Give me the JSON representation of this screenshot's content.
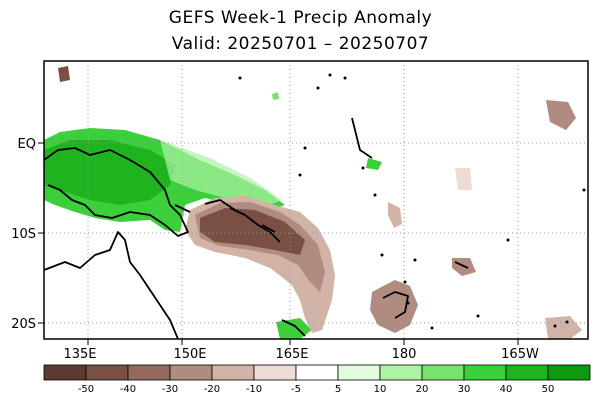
{
  "title": "GEFS Week-1 Precip Anomaly",
  "subtitle": "Valid: 20250701 – 20250707",
  "axes": {
    "x_ticks": [
      "135E",
      "150E",
      "165E",
      "180",
      "165W"
    ],
    "y_ticks": [
      "EQ",
      "10S",
      "20S"
    ]
  },
  "legend": {
    "labels": [
      "-50",
      "-40",
      "-30",
      "-20",
      "-10",
      "-5",
      "5",
      "10",
      "20",
      "30",
      "40",
      "50"
    ],
    "colors": [
      "#5e3b32",
      "#7a4f44",
      "#946a5e",
      "#b08b7f",
      "#d2b3a7",
      "#ecdcd3",
      "#ffffff",
      "#e2fbdf",
      "#aef2a4",
      "#78e36c",
      "#3ccf3c",
      "#1fb31f",
      "#0f990f"
    ]
  },
  "colors": {
    "dry": "#8c5f51",
    "wet": "#1fb31f",
    "grid": "#9a9a9a"
  }
}
